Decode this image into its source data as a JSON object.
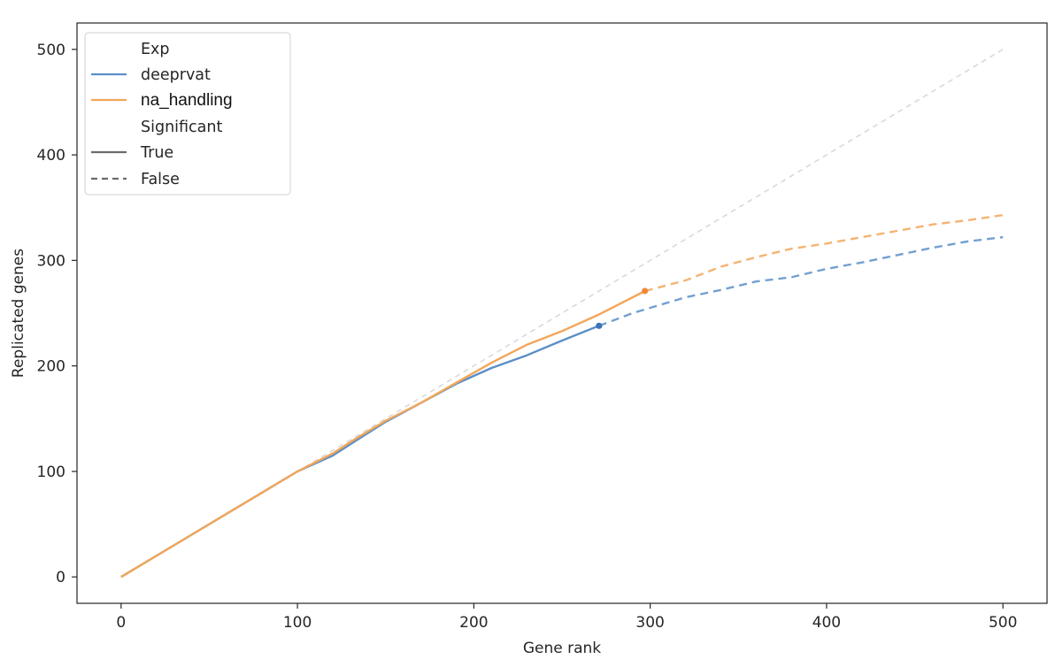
{
  "chart_data": {
    "type": "line",
    "title": "",
    "xlabel": "Gene rank",
    "ylabel": "Replicated genes",
    "xlim": [
      -25,
      525
    ],
    "ylim": [
      -25,
      525
    ],
    "xticks": [
      0,
      100,
      200,
      300,
      400,
      500
    ],
    "yticks": [
      0,
      100,
      200,
      300,
      400,
      500
    ],
    "grid": false,
    "legend": {
      "placement": "top-left",
      "hue_title": "Exp",
      "style_title": "Significant",
      "style_entries": [
        "True",
        "False"
      ]
    },
    "reference_line": {
      "x": [
        0,
        500
      ],
      "y": [
        0,
        500
      ],
      "color": "#d9d9d9",
      "style": "dashed"
    },
    "series": [
      {
        "name": "deeprvat",
        "color": "#5b8fc7",
        "significant_until_rank": 271,
        "significant_end_point": [
          271,
          238
        ],
        "x": [
          0,
          50,
          80,
          100,
          120,
          133,
          150,
          170,
          190,
          210,
          230,
          250,
          271,
          290,
          300,
          320,
          340,
          360,
          380,
          400,
          420,
          440,
          460,
          480,
          500
        ],
        "y": [
          0,
          50,
          80,
          100,
          115,
          129,
          147,
          165,
          183,
          198,
          210,
          224,
          238,
          250,
          255,
          265,
          272,
          280,
          284,
          292,
          298,
          305,
          312,
          318,
          322
        ]
      },
      {
        "name": "na_handling",
        "color": "#f2a65a",
        "significant_until_rank": 297,
        "significant_end_point": [
          297,
          271
        ],
        "x": [
          0,
          50,
          80,
          100,
          120,
          133,
          150,
          170,
          190,
          210,
          230,
          250,
          270,
          297,
          320,
          340,
          360,
          380,
          400,
          420,
          440,
          460,
          480,
          500
        ],
        "y": [
          0,
          50,
          80,
          100,
          117,
          131,
          148,
          165,
          184,
          203,
          220,
          233,
          248,
          271,
          281,
          294,
          303,
          311,
          316,
          322,
          328,
          334,
          338,
          343
        ]
      }
    ]
  }
}
